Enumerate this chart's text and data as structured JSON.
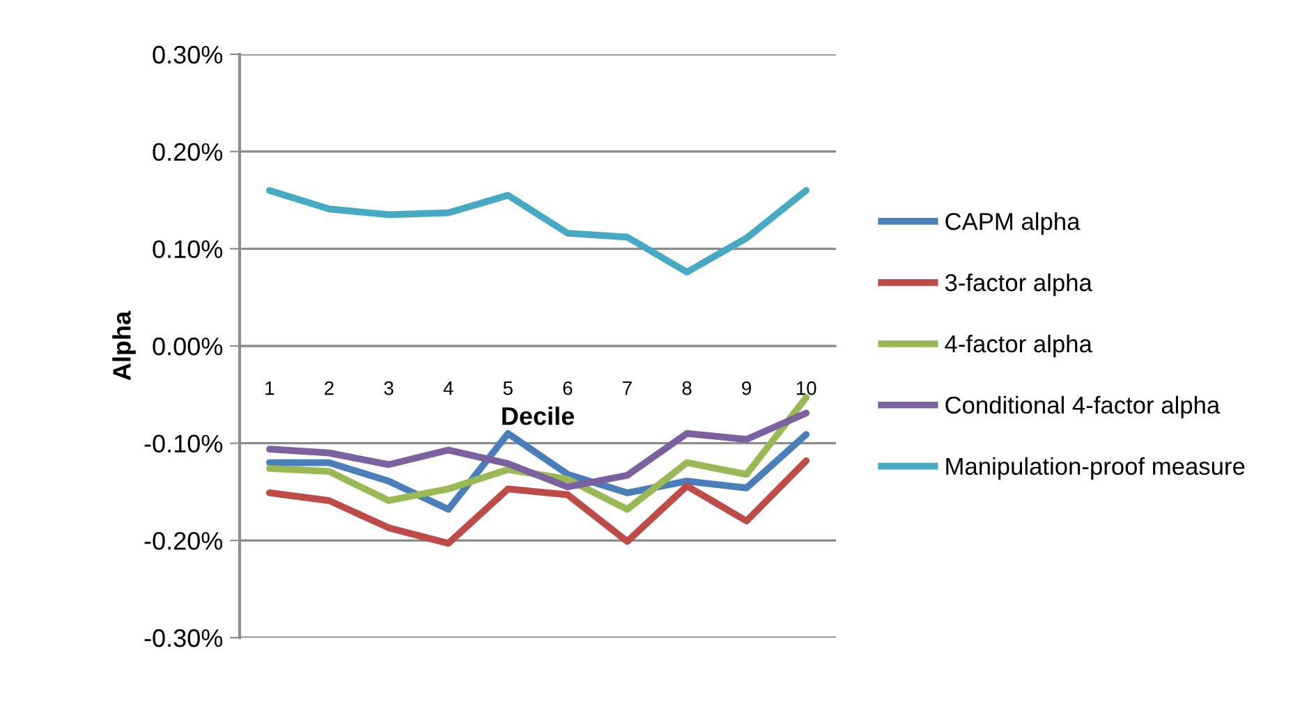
{
  "chart_data": {
    "type": "line",
    "xlabel": "Decile",
    "ylabel": "Alpha",
    "categories": [
      "1",
      "2",
      "3",
      "4",
      "5",
      "6",
      "7",
      "8",
      "9",
      "10"
    ],
    "series": [
      {
        "name": "CAPM alpha",
        "color": "#4a7ebb",
        "values": [
          -0.12,
          -0.12,
          -0.139,
          -0.168,
          -0.09,
          -0.132,
          -0.151,
          -0.139,
          -0.146,
          -0.091
        ]
      },
      {
        "name": "3-factor alpha",
        "color": "#be4b48",
        "values": [
          -0.151,
          -0.159,
          -0.187,
          -0.203,
          -0.147,
          -0.153,
          -0.201,
          -0.144,
          -0.18,
          -0.118
        ]
      },
      {
        "name": "4-factor alpha",
        "color": "#98b954",
        "values": [
          -0.126,
          -0.129,
          -0.159,
          -0.147,
          -0.127,
          -0.137,
          -0.168,
          -0.12,
          -0.132,
          -0.053
        ]
      },
      {
        "name": "Conditional 4-factor alpha",
        "color": "#7d60a0",
        "values": [
          -0.106,
          -0.11,
          -0.122,
          -0.107,
          -0.121,
          -0.145,
          -0.133,
          -0.09,
          -0.096,
          -0.069
        ]
      },
      {
        "name": "Manipulation-proof measure",
        "color": "#46aac5",
        "values": [
          0.16,
          0.141,
          0.135,
          0.137,
          0.155,
          0.116,
          0.112,
          0.076,
          0.111,
          0.16
        ]
      }
    ],
    "ylim": [
      -0.3,
      0.3
    ],
    "yticks": [
      {
        "value": -0.3,
        "label": "-0.30%"
      },
      {
        "value": -0.2,
        "label": "-0.20%"
      },
      {
        "value": -0.1,
        "label": "-0.10%"
      },
      {
        "value": 0.0,
        "label": "0.00%"
      },
      {
        "value": 0.1,
        "label": "0.10%"
      },
      {
        "value": 0.2,
        "label": "0.20%"
      },
      {
        "value": 0.3,
        "label": "0.30%"
      }
    ],
    "grid": "y",
    "legend": "right",
    "marker": "none",
    "line_style": "solid"
  }
}
